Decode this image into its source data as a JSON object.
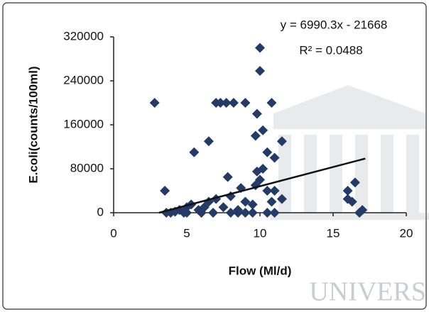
{
  "chart_data": {
    "type": "scatter",
    "xlabel": "Flow (Ml/d)",
    "ylabel": "E.coli(counts/100ml)",
    "xlim": [
      0,
      20
    ],
    "xticks": [
      0,
      5,
      10,
      15,
      20
    ],
    "ylim": [
      0,
      320000
    ],
    "yticks": [
      0,
      80000,
      160000,
      240000,
      320000
    ],
    "color": "#233b66",
    "x": [
      2.8,
      3.5,
      3.6,
      3.9,
      4.2,
      4.5,
      4.8,
      5.0,
      5.3,
      5.5,
      5.8,
      6.0,
      6.2,
      6.5,
      6.5,
      6.8,
      7.0,
      7.0,
      7.3,
      7.5,
      7.7,
      7.8,
      8.0,
      8.0,
      8.2,
      8.5,
      8.7,
      9.0,
      9.0,
      9.0,
      9.5,
      9.5,
      9.7,
      9.7,
      9.8,
      9.8,
      10.0,
      10.0,
      10.0,
      10.2,
      10.2,
      10.5,
      10.5,
      10.5,
      10.8,
      10.8,
      11.0,
      11.0,
      11.0,
      11.5,
      11.5,
      16.0,
      16.0,
      16.3,
      16.5,
      16.8,
      17.0,
      5.0,
      6.0,
      8.5
    ],
    "values": [
      200000,
      40000,
      0,
      0,
      2000,
      5000,
      0,
      10000,
      15000,
      110000,
      5000,
      0,
      10000,
      20000,
      130000,
      0,
      25000,
      200000,
      200000,
      10000,
      200000,
      65000,
      30000,
      0,
      200000,
      5000,
      45000,
      20000,
      0,
      200000,
      15000,
      0,
      50000,
      140000,
      180000,
      75000,
      300000,
      258000,
      60000,
      80000,
      150000,
      110000,
      40000,
      0,
      200000,
      20000,
      100000,
      40000,
      0,
      130000,
      25000,
      40000,
      25000,
      20000,
      55000,
      0,
      5000,
      0,
      0,
      0
    ],
    "trendline": {
      "label": "y = 6990.3x - 21668",
      "slope": 6990.3,
      "intercept": -21668,
      "x": [
        3.1,
        17.2
      ],
      "color": "#111111"
    },
    "r2_label": "R² = 0.0488",
    "watermark": "UNIVERS"
  }
}
